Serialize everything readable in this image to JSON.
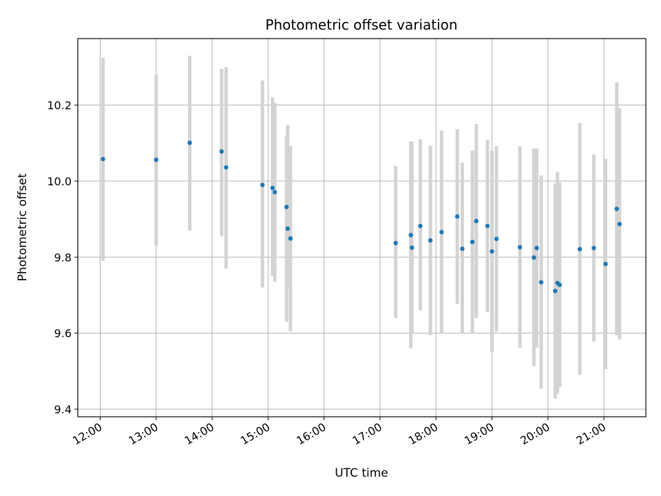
{
  "chart_data": {
    "type": "scatter",
    "title": "Photometric offset variation",
    "xlabel": "UTC time",
    "ylabel": "Photometric offset",
    "xlim": [
      11.6,
      21.75
    ],
    "ylim": [
      9.38,
      10.375
    ],
    "grid": true,
    "x_tick_values": [
      12,
      13,
      14,
      15,
      16,
      17,
      18,
      19,
      20,
      21
    ],
    "x_tick_labels": [
      "12:00",
      "13:00",
      "14:00",
      "15:00",
      "16:00",
      "17:00",
      "18:00",
      "19:00",
      "20:00",
      "21:00"
    ],
    "y_tick_values": [
      9.4,
      9.6,
      9.8,
      10.0,
      10.2
    ],
    "y_tick_labels": [
      "9.4",
      "9.6",
      "9.8",
      "10.0",
      "10.2"
    ],
    "marker_color": "#1f77b4",
    "errorbar_color": "#d3d3d3",
    "points": [
      {
        "x": 12.05,
        "y": 10.058,
        "ylo": 9.79,
        "yhi": 10.325
      },
      {
        "x": 13.0,
        "y": 10.056,
        "ylo": 9.83,
        "yhi": 10.28
      },
      {
        "x": 13.6,
        "y": 10.101,
        "ylo": 9.87,
        "yhi": 10.33
      },
      {
        "x": 14.17,
        "y": 10.078,
        "ylo": 9.855,
        "yhi": 10.295
      },
      {
        "x": 14.25,
        "y": 10.036,
        "ylo": 9.77,
        "yhi": 10.3
      },
      {
        "x": 14.9,
        "y": 9.99,
        "ylo": 9.72,
        "yhi": 10.265
      },
      {
        "x": 15.08,
        "y": 9.982,
        "ylo": 9.75,
        "yhi": 10.22
      },
      {
        "x": 15.12,
        "y": 9.971,
        "ylo": 9.735,
        "yhi": 10.205
      },
      {
        "x": 15.33,
        "y": 9.932,
        "ylo": 9.63,
        "yhi": 10.12
      },
      {
        "x": 15.35,
        "y": 9.875,
        "ylo": 9.72,
        "yhi": 10.148
      },
      {
        "x": 15.4,
        "y": 9.849,
        "ylo": 9.605,
        "yhi": 10.093
      },
      {
        "x": 17.28,
        "y": 9.837,
        "ylo": 9.64,
        "yhi": 10.04
      },
      {
        "x": 17.55,
        "y": 9.858,
        "ylo": 9.56,
        "yhi": 10.104
      },
      {
        "x": 17.57,
        "y": 9.825,
        "ylo": 9.6,
        "yhi": 10.104
      },
      {
        "x": 17.72,
        "y": 9.882,
        "ylo": 9.66,
        "yhi": 10.11
      },
      {
        "x": 17.9,
        "y": 9.844,
        "ylo": 9.595,
        "yhi": 10.093
      },
      {
        "x": 18.1,
        "y": 9.866,
        "ylo": 9.6,
        "yhi": 10.133
      },
      {
        "x": 18.38,
        "y": 9.907,
        "ylo": 9.677,
        "yhi": 10.137
      },
      {
        "x": 18.47,
        "y": 9.822,
        "ylo": 9.6,
        "yhi": 10.049
      },
      {
        "x": 18.65,
        "y": 9.84,
        "ylo": 9.6,
        "yhi": 10.08
      },
      {
        "x": 18.72,
        "y": 9.895,
        "ylo": 9.64,
        "yhi": 10.15
      },
      {
        "x": 18.92,
        "y": 9.882,
        "ylo": 9.655,
        "yhi": 10.109
      },
      {
        "x": 19.0,
        "y": 9.815,
        "ylo": 9.55,
        "yhi": 10.08
      },
      {
        "x": 19.08,
        "y": 9.848,
        "ylo": 9.604,
        "yhi": 10.092
      },
      {
        "x": 19.5,
        "y": 9.826,
        "ylo": 9.562,
        "yhi": 10.092
      },
      {
        "x": 19.75,
        "y": 9.799,
        "ylo": 9.513,
        "yhi": 10.086
      },
      {
        "x": 19.8,
        "y": 9.824,
        "ylo": 9.562,
        "yhi": 10.086
      },
      {
        "x": 19.88,
        "y": 9.734,
        "ylo": 9.454,
        "yhi": 10.015
      },
      {
        "x": 20.13,
        "y": 9.711,
        "ylo": 9.428,
        "yhi": 9.994
      },
      {
        "x": 20.17,
        "y": 9.732,
        "ylo": 9.44,
        "yhi": 10.024
      },
      {
        "x": 20.21,
        "y": 9.727,
        "ylo": 9.458,
        "yhi": 9.997
      },
      {
        "x": 20.57,
        "y": 9.821,
        "ylo": 9.49,
        "yhi": 10.153
      },
      {
        "x": 20.82,
        "y": 9.824,
        "ylo": 9.578,
        "yhi": 10.07
      },
      {
        "x": 21.03,
        "y": 9.782,
        "ylo": 9.505,
        "yhi": 10.059
      },
      {
        "x": 21.23,
        "y": 9.927,
        "ylo": 9.595,
        "yhi": 10.26
      },
      {
        "x": 21.28,
        "y": 9.887,
        "ylo": 9.583,
        "yhi": 10.192
      }
    ]
  }
}
